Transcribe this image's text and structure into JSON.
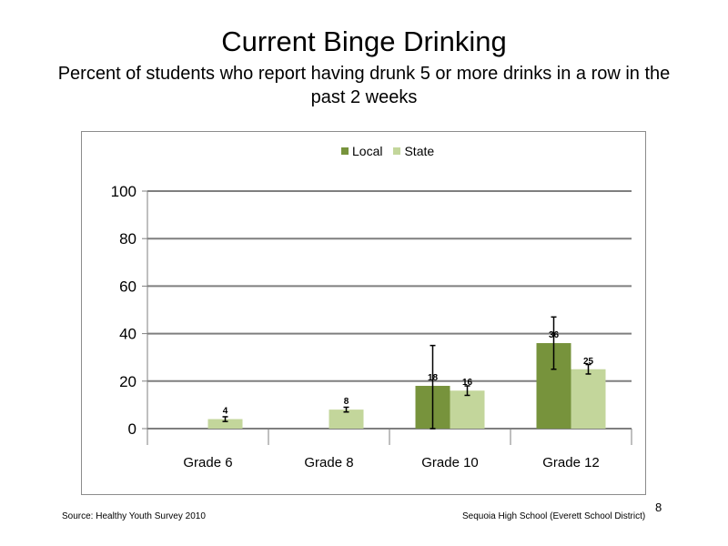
{
  "slide": {
    "title": "Current Binge Drinking",
    "subtitle": "Percent of students who report having drunk 5 or more drinks in a row in the past 2 weeks",
    "source": "Source: Healthy Youth Survey 2010",
    "school": "Sequoia High School (Everett School District)",
    "page_number": "8"
  },
  "colors": {
    "local": "#77933c",
    "state": "#c3d69b"
  },
  "chart_data": {
    "type": "bar",
    "categories": [
      "Grade 6",
      "Grade 8",
      "Grade 10",
      "Grade 12"
    ],
    "series": [
      {
        "name": "Local",
        "values": [
          null,
          null,
          18,
          36
        ],
        "error_low": [
          null,
          null,
          0,
          25
        ],
        "error_high": [
          null,
          null,
          35,
          47
        ]
      },
      {
        "name": "State",
        "values": [
          4,
          8,
          16,
          25
        ],
        "error_low": [
          3,
          7,
          14,
          23
        ],
        "error_high": [
          5,
          9,
          18,
          27
        ]
      }
    ],
    "ylim": [
      0,
      100
    ],
    "yticks": [
      0,
      20,
      40,
      60,
      80,
      100
    ],
    "grid": true,
    "legend_position": "top-center"
  }
}
